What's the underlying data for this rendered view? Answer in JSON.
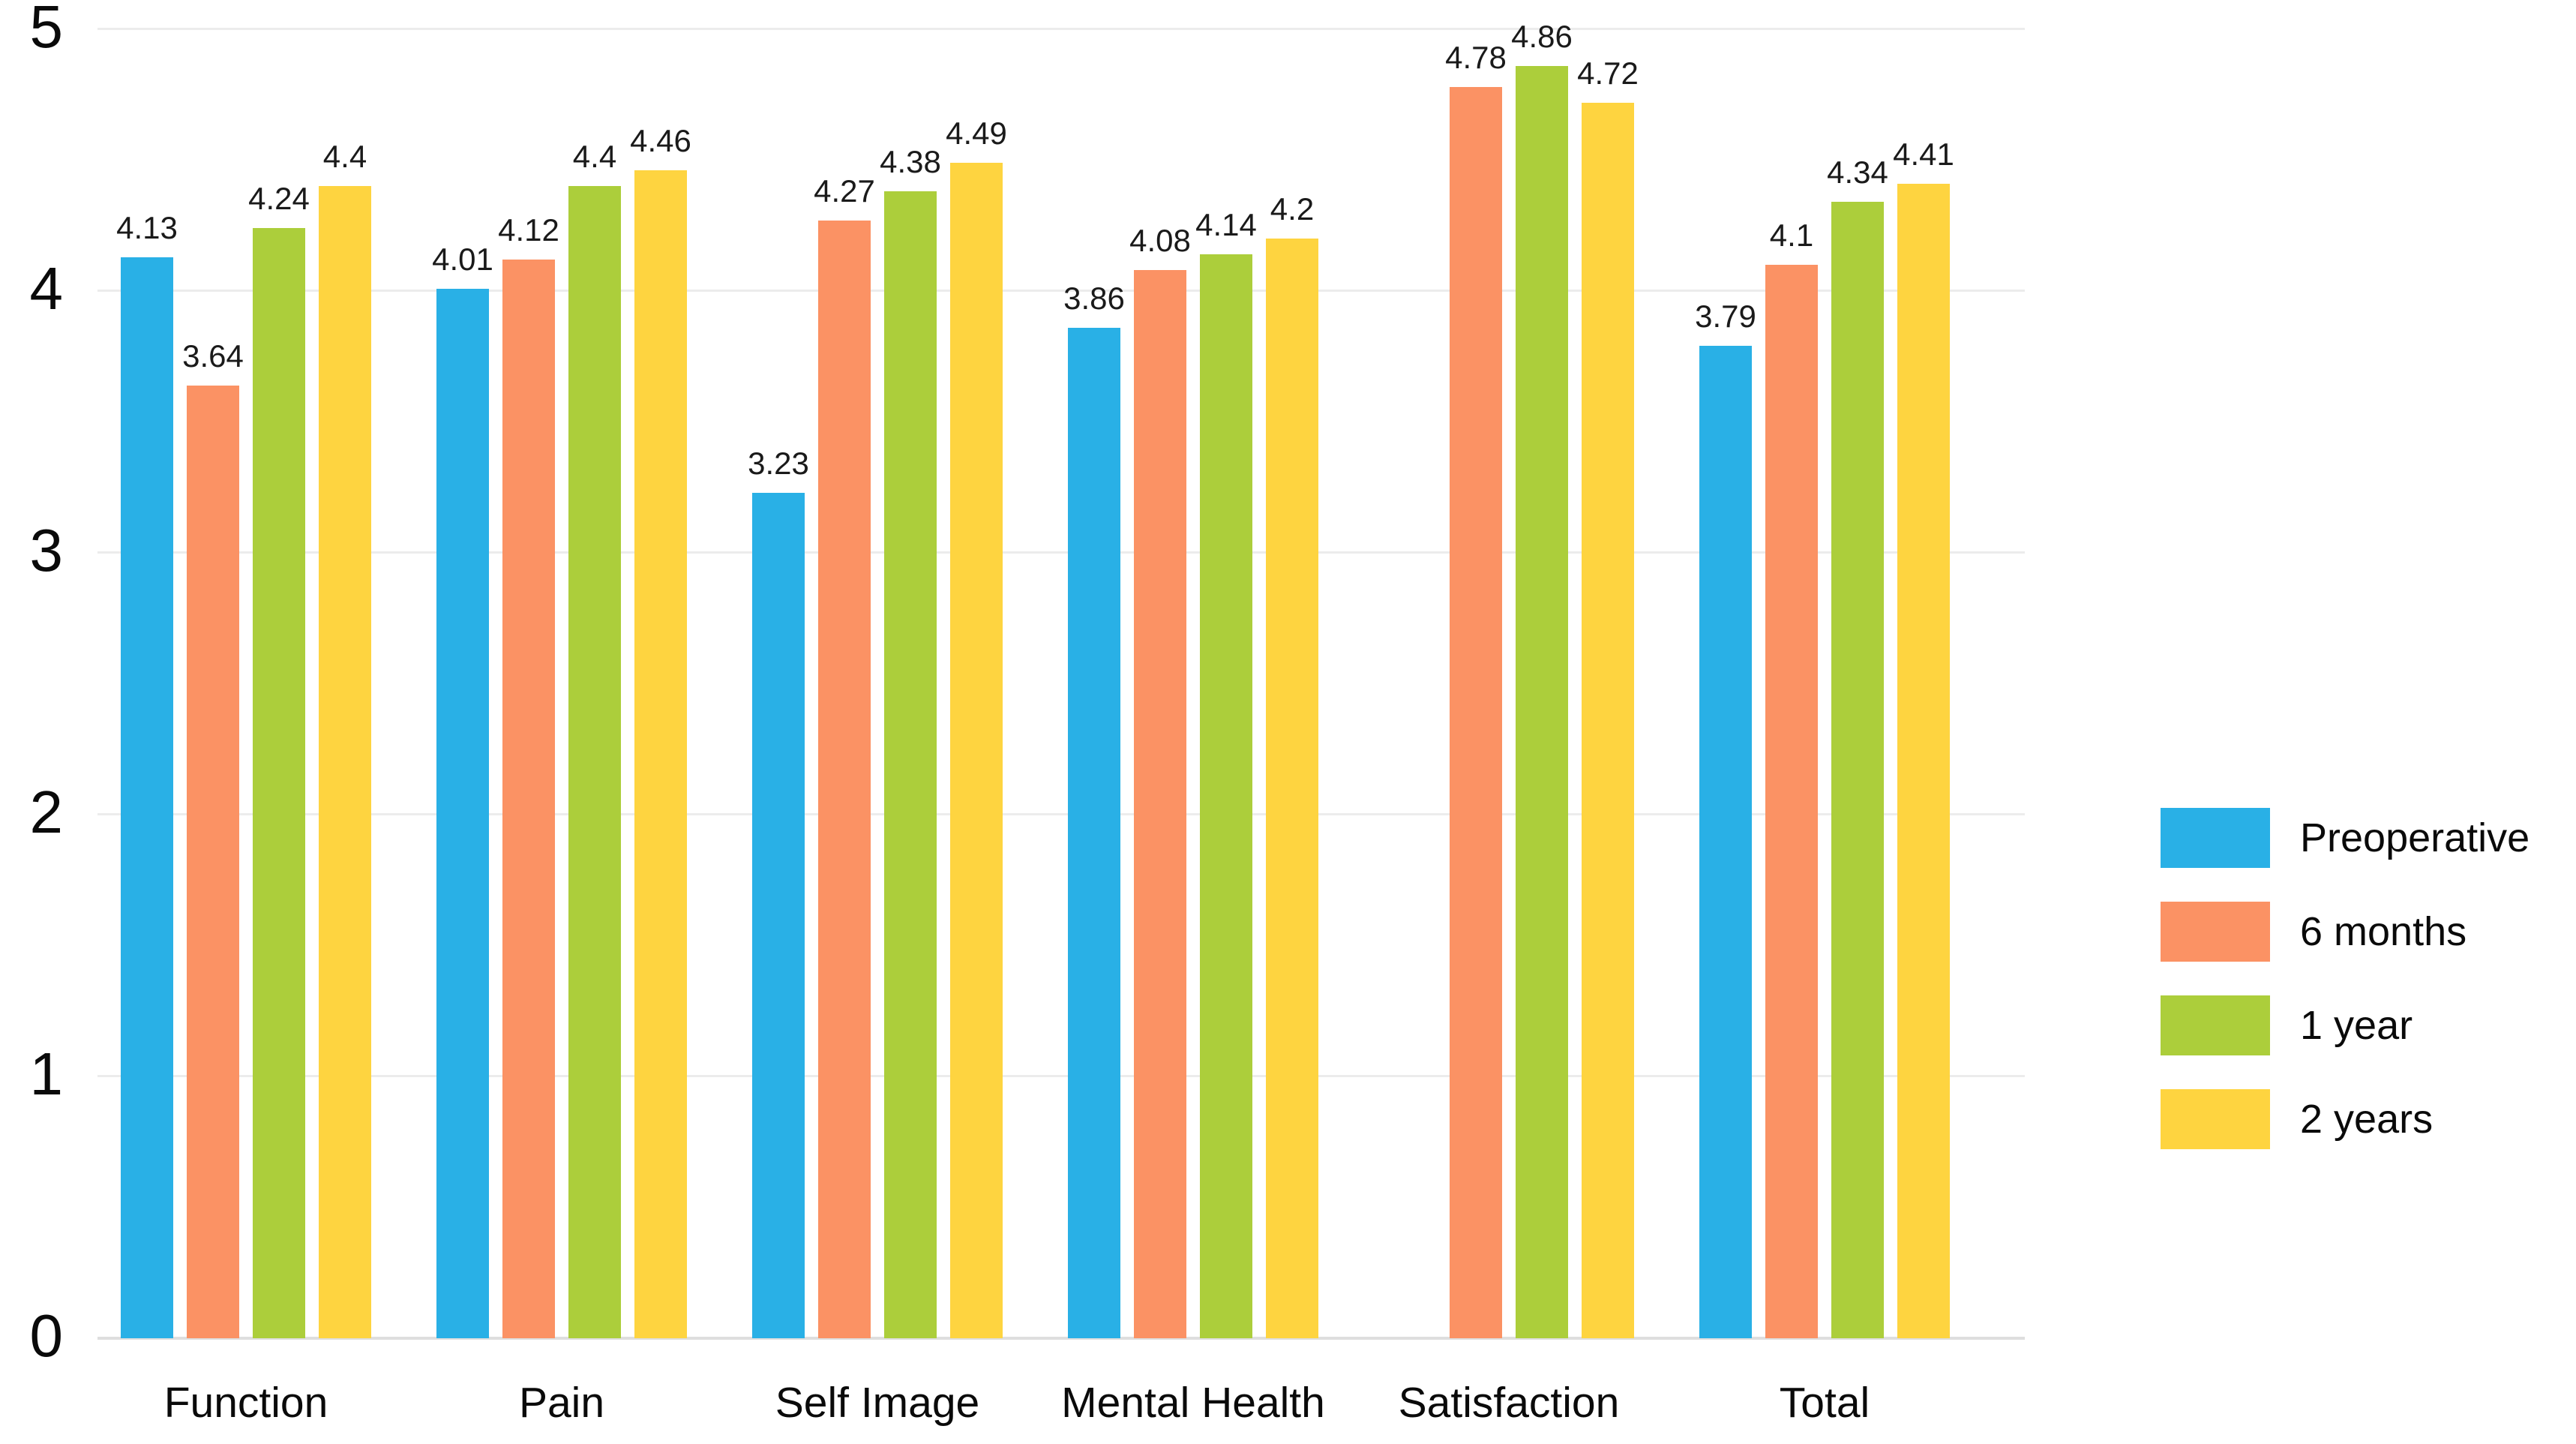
{
  "chart_data": {
    "type": "bar",
    "categories": [
      "Function",
      "Pain",
      "Self Image",
      "Mental Health",
      "Satisfaction",
      "Total"
    ],
    "series": [
      {
        "name": "Preoperative",
        "color": "#29B0E6",
        "values": [
          4.13,
          4.01,
          3.23,
          3.86,
          null,
          3.79
        ],
        "labels": [
          "4.13",
          "4.01",
          "3.23",
          "3.86",
          "",
          "3.79"
        ]
      },
      {
        "name": "6 months",
        "color": "#FB9264",
        "values": [
          3.64,
          4.12,
          4.27,
          4.08,
          4.78,
          4.1
        ],
        "labels": [
          "3.64",
          "4.12",
          "4.27",
          "4.08",
          "4.78",
          "4.1"
        ]
      },
      {
        "name": "1 year",
        "color": "#ACCE3B",
        "values": [
          4.24,
          4.4,
          4.38,
          4.14,
          4.86,
          4.34
        ],
        "labels": [
          "4.24",
          "4.4",
          "4.38",
          "4.14",
          "4.86",
          "4.34"
        ]
      },
      {
        "name": "2 years",
        "color": "#FED440",
        "values": [
          4.4,
          4.46,
          4.49,
          4.2,
          4.72,
          4.41
        ],
        "labels": [
          "4.4",
          "4.46",
          "4.49",
          "4.2",
          "4.72",
          "4.41"
        ]
      }
    ],
    "ylim": [
      0,
      5
    ],
    "yticks": [
      0,
      1,
      2,
      3,
      4,
      5
    ],
    "grid": true,
    "legend_position": "right"
  }
}
